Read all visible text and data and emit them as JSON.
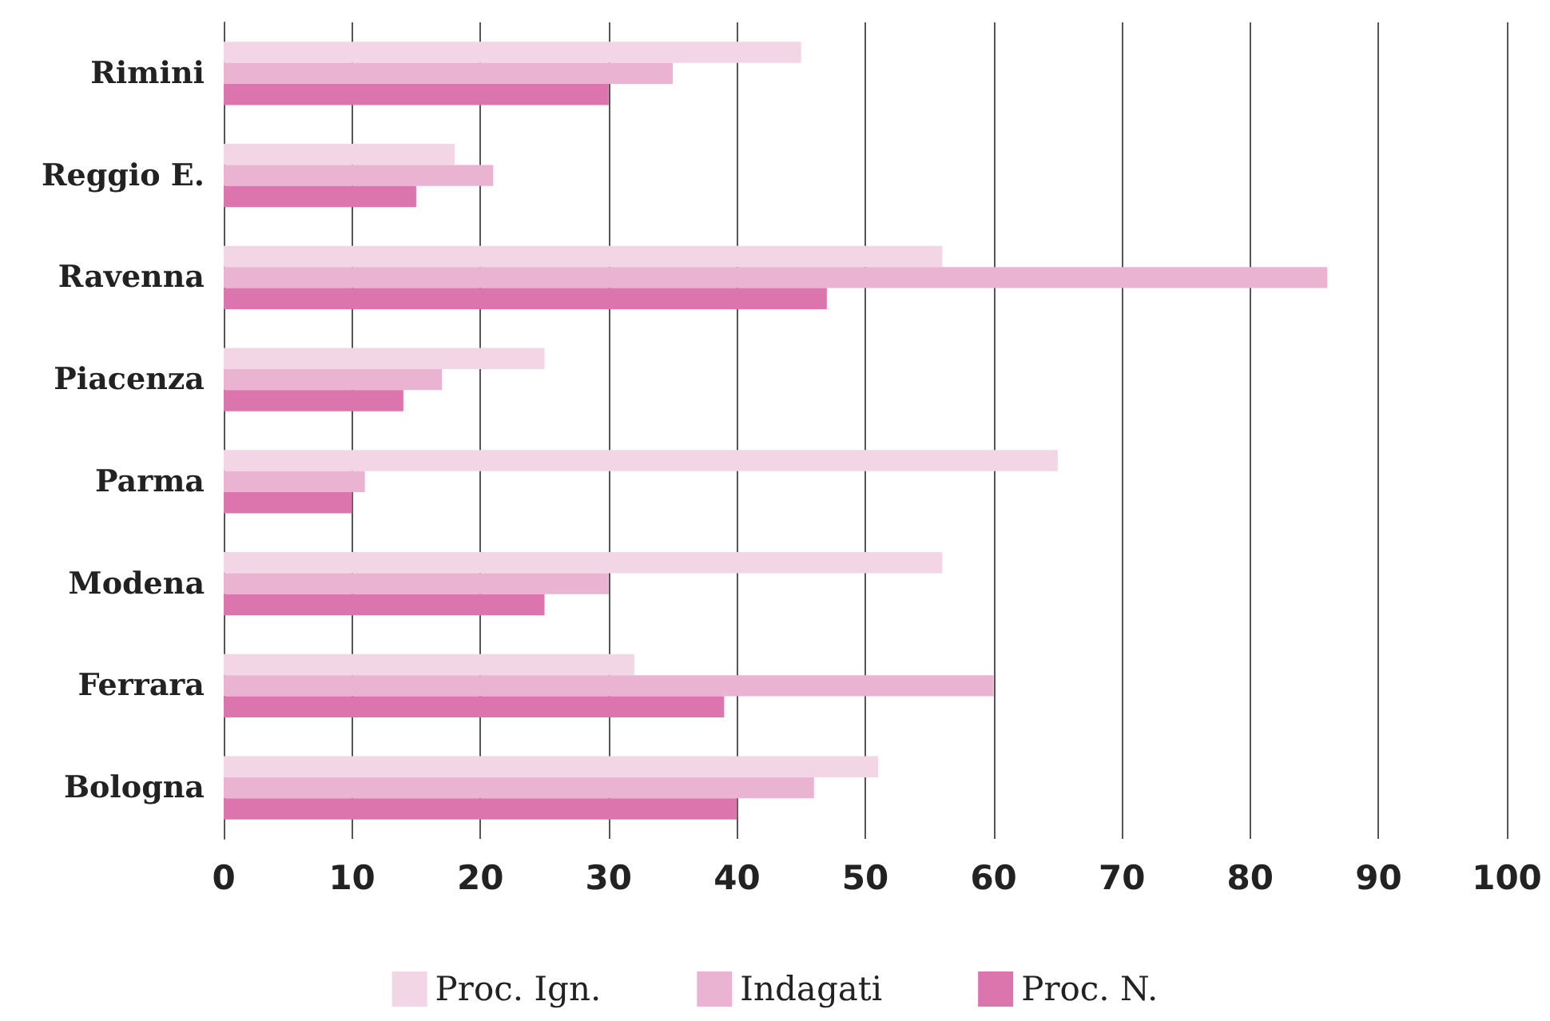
{
  "chart_data": {
    "type": "bar",
    "orientation": "horizontal",
    "categories": [
      "Rimini",
      "Reggio E.",
      "Ravenna",
      "Piacenza",
      "Parma",
      "Modena",
      "Ferrara",
      "Bologna"
    ],
    "series": [
      {
        "name": "Proc. Ign.",
        "color": "#f3d6e6",
        "values": [
          45,
          18,
          56,
          25,
          65,
          56,
          32,
          51
        ]
      },
      {
        "name": "Indagati",
        "color": "#eab3d1",
        "values": [
          35,
          21,
          86,
          17,
          11,
          30,
          60,
          46
        ]
      },
      {
        "name": "Proc. N.",
        "color": "#dc74ad",
        "values": [
          30,
          15,
          47,
          14,
          10,
          25,
          39,
          40
        ]
      }
    ],
    "xlim": [
      0,
      100
    ],
    "xticks": [
      0,
      10,
      20,
      30,
      40,
      50,
      60,
      70,
      80,
      90,
      100
    ],
    "grid": "x",
    "legend": "bottom"
  }
}
